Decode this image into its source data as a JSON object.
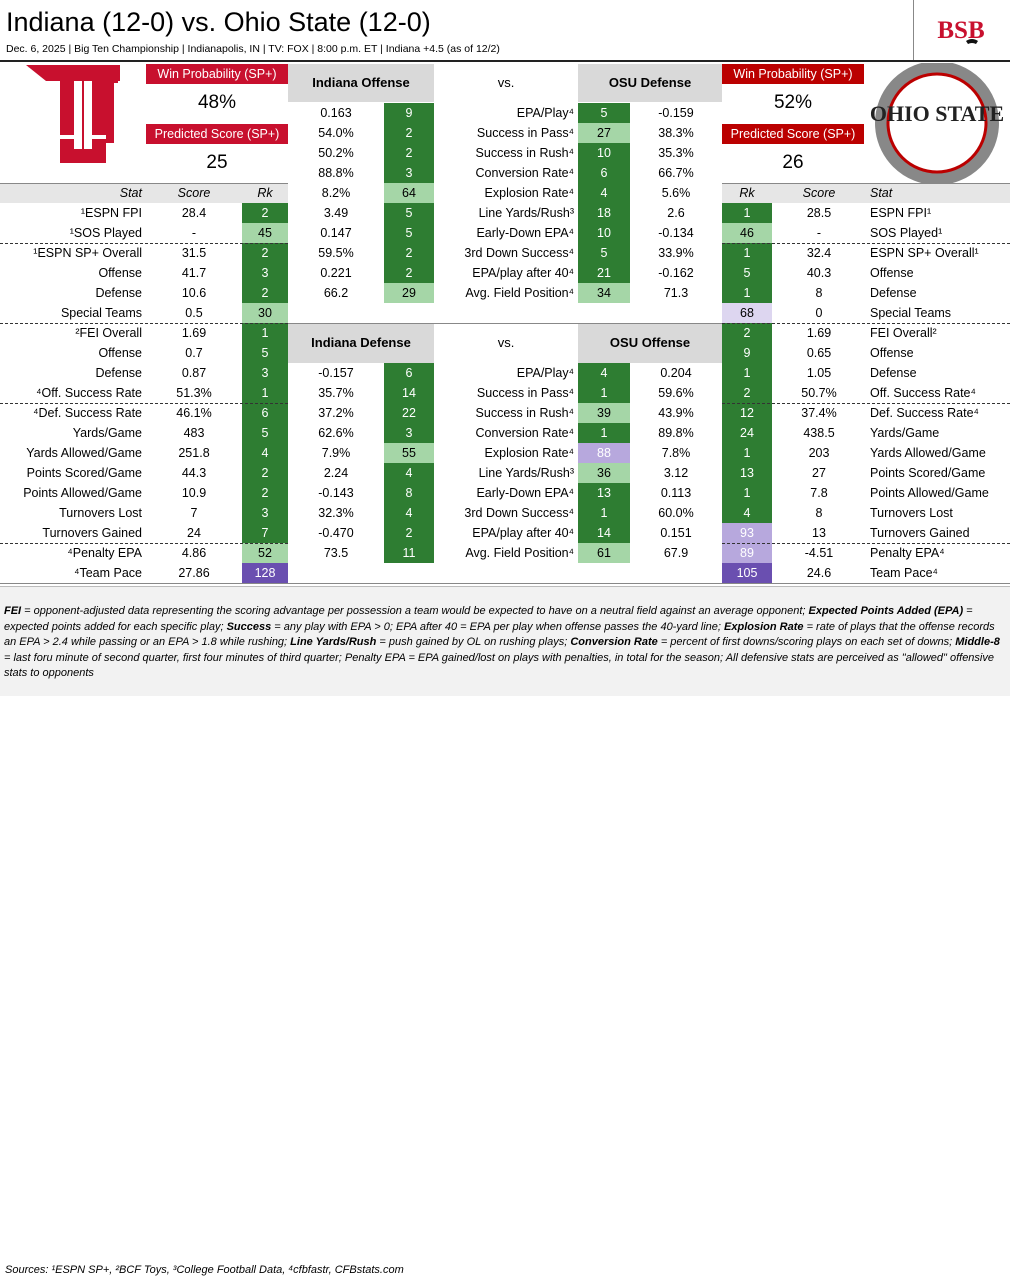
{
  "header": {
    "title": "Indiana (12-0) vs. Ohio State (12-0)",
    "subtitle": "Dec. 6, 2025 | Big Ten Championship | Indianapolis, IN | TV: FOX | 8:00 p.m. ET | Indiana +4.5 (as of 12/2)",
    "brand": "BSB"
  },
  "colors": {
    "indiana": "#c8102e",
    "osu": "#bb0000",
    "dark_green": "#2e7d32",
    "light_green": "#a5d6a7",
    "purple": "#6a4fb0",
    "light_purple": "#b7a8dd",
    "lavender": "#ddd6f0"
  },
  "team_left": {
    "logo_text": "IU",
    "win_prob_label": "Win Probability (SP+)",
    "win_prob": "48%",
    "pred_label": "Predicted Score (SP+)",
    "pred_score": "25"
  },
  "team_right": {
    "logo_text": "OHIO STATE",
    "win_prob_label": "Win Probability (SP+)",
    "win_prob": "52%",
    "pred_label": "Predicted Score (SP+)",
    "pred_score": "26"
  },
  "columns": {
    "stat": "Stat",
    "score": "Score",
    "rk": "Rk",
    "vs": "vs."
  },
  "matchup1": {
    "off": "Indiana Offense",
    "def": "OSU Defense"
  },
  "matchup2": {
    "def": "Indiana Defense",
    "off": "OSU Offense"
  },
  "rows_top": [
    {
      "iv": "0.163",
      "ir": "9",
      "stat": "EPA/Play⁴",
      "or": "5",
      "ov": "-0.159"
    },
    {
      "iv": "54.0%",
      "ir": "2",
      "stat": "Success in Pass⁴",
      "or": "27",
      "ov": "38.3%"
    },
    {
      "iv": "50.2%",
      "ir": "2",
      "stat": "Success in Rush⁴",
      "or": "10",
      "ov": "35.3%"
    },
    {
      "iv": "88.8%",
      "ir": "3",
      "stat": "Conversion Rate⁴",
      "or": "6",
      "ov": "66.7%"
    },
    {
      "iv": "8.2%",
      "ir": "64",
      "stat": "Explosion Rate⁴",
      "or": "4",
      "ov": "5.6%"
    },
    {
      "iv": "3.49",
      "ir": "5",
      "stat": "Line Yards/Rush³",
      "or": "18",
      "ov": "2.6"
    },
    {
      "iv": "0.147",
      "ir": "5",
      "stat": "Early-Down EPA⁴",
      "or": "10",
      "ov": "-0.134"
    },
    {
      "iv": "59.5%",
      "ir": "2",
      "stat": "3rd Down Success⁴",
      "or": "5",
      "ov": "33.9%"
    },
    {
      "iv": "0.221",
      "ir": "2",
      "stat": "EPA/play after 40⁴",
      "or": "21",
      "ov": "-0.162"
    },
    {
      "iv": "66.2",
      "ir": "29",
      "stat": "Avg. Field Position⁴",
      "or": "34",
      "ov": "71.3"
    }
  ],
  "rows_bottom": [
    {
      "iv": "-0.157",
      "ir": "6",
      "stat": "EPA/Play⁴",
      "or": "4",
      "ov": "0.204"
    },
    {
      "iv": "35.7%",
      "ir": "14",
      "stat": "Success in Pass⁴",
      "or": "1",
      "ov": "59.6%"
    },
    {
      "iv": "37.2%",
      "ir": "22",
      "stat": "Success in Rush⁴",
      "or": "39",
      "ov": "43.9%"
    },
    {
      "iv": "62.6%",
      "ir": "3",
      "stat": "Conversion Rate⁴",
      "or": "1",
      "ov": "89.8%"
    },
    {
      "iv": "7.9%",
      "ir": "55",
      "stat": "Explosion Rate⁴",
      "or": "88",
      "ov": "7.8%"
    },
    {
      "iv": "2.24",
      "ir": "4",
      "stat": "Line Yards/Rush³",
      "or": "36",
      "ov": "3.12"
    },
    {
      "iv": "-0.143",
      "ir": "8",
      "stat": "Early-Down EPA⁴",
      "or": "13",
      "ov": "0.113"
    },
    {
      "iv": "32.3%",
      "ir": "4",
      "stat": "3rd Down Success⁴",
      "or": "1",
      "ov": "60.0%"
    },
    {
      "iv": "-0.470",
      "ir": "2",
      "stat": "EPA/play after 40⁴",
      "or": "14",
      "ov": "0.151"
    },
    {
      "iv": "73.5",
      "ir": "11",
      "stat": "Avg. Field Position⁴",
      "or": "61",
      "ov": "67.9"
    }
  ],
  "side_left": [
    {
      "stat": "¹ESPN FPI",
      "score": "28.4",
      "rk": "2"
    },
    {
      "stat": "¹SOS Played",
      "score": "-",
      "rk": "45"
    },
    {
      "stat": "¹ESPN SP+ Overall",
      "score": "31.5",
      "rk": "2"
    },
    {
      "stat": "Offense",
      "score": "41.7",
      "rk": "3"
    },
    {
      "stat": "Defense",
      "score": "10.6",
      "rk": "2"
    },
    {
      "stat": "Special Teams",
      "score": "0.5",
      "rk": "30"
    },
    {
      "stat": "²FEI Overall",
      "score": "1.69",
      "rk": "1"
    },
    {
      "stat": "Offense",
      "score": "0.7",
      "rk": "5"
    },
    {
      "stat": "Defense",
      "score": "0.87",
      "rk": "3"
    },
    {
      "stat": "⁴Off. Success Rate",
      "score": "51.3%",
      "rk": "1"
    },
    {
      "stat": "⁴Def. Success Rate",
      "score": "46.1%",
      "rk": "6"
    },
    {
      "stat": "Yards/Game",
      "score": "483",
      "rk": "5"
    },
    {
      "stat": "Yards Allowed/Game",
      "score": "251.8",
      "rk": "4"
    },
    {
      "stat": "Points Scored/Game",
      "score": "44.3",
      "rk": "2"
    },
    {
      "stat": "Points Allowed/Game",
      "score": "10.9",
      "rk": "2"
    },
    {
      "stat": "Turnovers Lost",
      "score": "7",
      "rk": "3"
    },
    {
      "stat": "Turnovers Gained",
      "score": "24",
      "rk": "7"
    },
    {
      "stat": "⁴Penalty EPA",
      "score": "4.86",
      "rk": "52"
    },
    {
      "stat": "⁴Team Pace",
      "score": "27.86",
      "rk": "128"
    }
  ],
  "side_right": [
    {
      "stat": "ESPN FPI¹",
      "score": "28.5",
      "rk": "1"
    },
    {
      "stat": "SOS Played¹",
      "score": "-",
      "rk": "46"
    },
    {
      "stat": "ESPN SP+ Overall¹",
      "score": "32.4",
      "rk": "1"
    },
    {
      "stat": "Offense",
      "score": "40.3",
      "rk": "5"
    },
    {
      "stat": "Defense",
      "score": "8",
      "rk": "1"
    },
    {
      "stat": "Special Teams",
      "score": "0",
      "rk": "68"
    },
    {
      "stat": "FEI Overall²",
      "score": "1.69",
      "rk": "2"
    },
    {
      "stat": "Offense",
      "score": "0.65",
      "rk": "9"
    },
    {
      "stat": "Defense",
      "score": "1.05",
      "rk": "1"
    },
    {
      "stat": "Off. Success Rate⁴",
      "score": "50.7%",
      "rk": "2"
    },
    {
      "stat": "Def. Success Rate⁴",
      "score": "37.4%",
      "rk": "12"
    },
    {
      "stat": "Yards/Game",
      "score": "438.5",
      "rk": "24"
    },
    {
      "stat": "Yards Allowed/Game",
      "score": "203",
      "rk": "1"
    },
    {
      "stat": "Points Scored/Game",
      "score": "27",
      "rk": "13"
    },
    {
      "stat": "Points Allowed/Game",
      "score": "7.8",
      "rk": "1"
    },
    {
      "stat": "Turnovers Lost",
      "score": "8",
      "rk": "4"
    },
    {
      "stat": "Turnovers Gained",
      "score": "13",
      "rk": "93"
    },
    {
      "stat": "Penalty EPA⁴",
      "score": "-4.51",
      "rk": "89"
    },
    {
      "stat": "Team Pace⁴",
      "score": "24.6",
      "rk": "105"
    }
  ],
  "notes": {
    "text_parts": [
      {
        "b": "FEI",
        "t": " = opponent-adjusted data representing the scoring advantage per possession a team would be expected to have on a neutral field against an average opponent; "
      },
      {
        "b": "Expected Points Added (EPA)",
        "t": " = expected points added for each specific play; "
      },
      {
        "b": "Success",
        "t": " = any play with EPA > 0; "
      },
      {
        "b": "",
        "t": "EPA after 40 = EPA per play when offense passes the 40-yard line; "
      },
      {
        "b": "Explosion Rate",
        "t": " = rate of plays that the offense records an EPA > 2.4 while passing or an EPA > 1.8 while rushing; "
      },
      {
        "b": "Line Yards/Rush",
        "t": " = push gained by OL on rushing plays; "
      },
      {
        "b": "Conversion Rate",
        "t": " = percent of first downs/scoring plays on each set of downs; "
      },
      {
        "b": "Middle-8",
        "t": " = last foru minute of second quarter, first four minutes of third quarter; Penalty EPA = EPA gained/lost on plays with penalties, in total for the season; All defensive stats are perceived as \"allowed\" offensive stats to opponents"
      }
    ],
    "sources": "Sources:  ¹ESPN SP+, ²BCF Toys, ³College Football Data, ⁴cfbfastr, CFBstats.com"
  }
}
